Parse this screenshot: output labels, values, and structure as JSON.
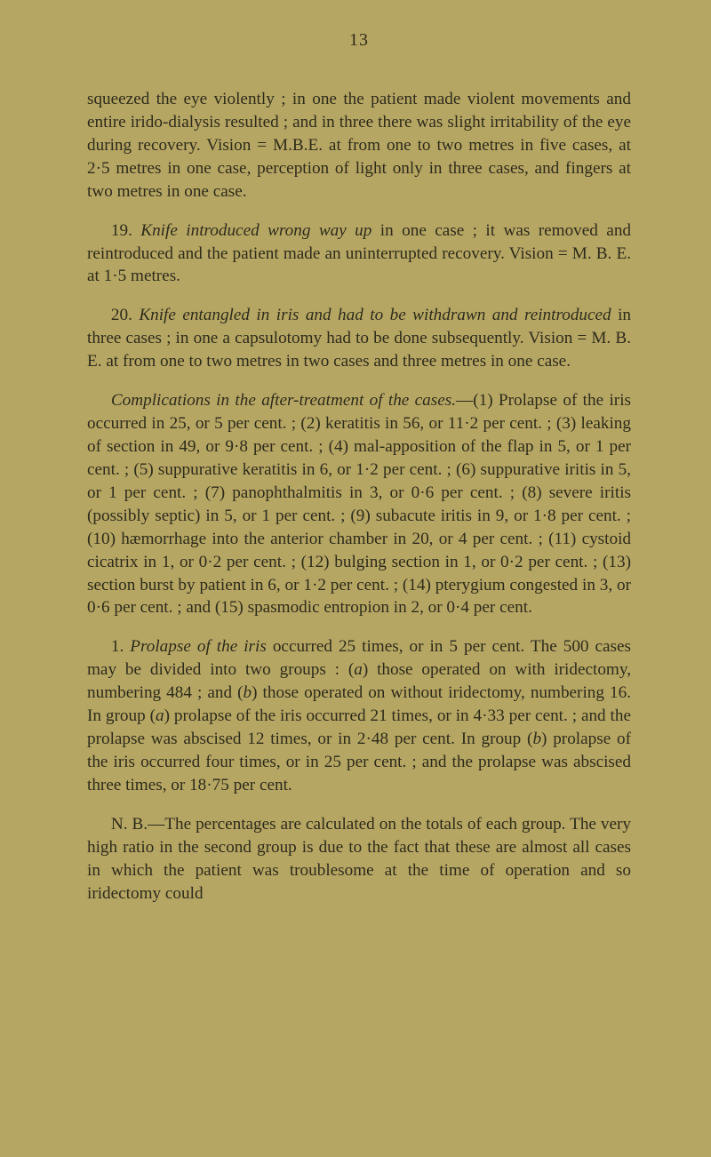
{
  "page_number": "13",
  "p1": "squeezed the eye violently ; in one the patient made violent movements and entire irido-dialysis resulted ; and in three there was slight irritability of the eye during recovery. Vision = M.B.E. at from one to two metres in five cases, at 2·5 metres in one case, perception of light only in three cases, and fingers at two metres in one case.",
  "p2_lead": "19. ",
  "p2_it": "Knife introduced wrong way up",
  "p2_rest": " in one case ; it was removed and reintroduced and the patient made an uninterrupted recovery. Vision = M. B. E. at 1·5 metres.",
  "p3_lead": "20. ",
  "p3_it": "Knife entangled in iris and had to be withdrawn and reintroduced",
  "p3_rest": " in three cases ; in one a capsulotomy had to be done subsequently. Vision = M. B. E. at from one to two metres in two cases and three metres in one case.",
  "p4_it": "Complications in the after-treatment of the cases.",
  "p4_rest": "—(1) Prolapse of the iris occurred in 25, or 5 per cent. ; (2) keratitis in 56, or 11·2 per cent. ; (3) leaking of section in 49, or 9·8 per cent. ; (4) mal-apposition of the flap in 5, or 1 per cent. ; (5) suppurative keratitis in 6, or 1·2 per cent. ; (6) suppurative iritis in 5, or 1 per cent. ; (7) panophthalmitis in 3, or 0·6 per cent. ; (8) severe iritis (possibly septic) in 5, or 1 per cent. ; (9) subacute iritis in 9, or 1·8 per cent. ; (10) hæmorrhage into the anterior chamber in 20, or 4 per cent. ; (11) cystoid cicatrix in 1, or 0·2 per cent. ; (12) bulging section in 1, or 0·2 per cent. ; (13) section burst by patient in 6, or 1·2 per cent. ; (14) pterygium congested in 3, or 0·6 per cent. ; and (15) spasmodic entropion in 2, or 0·4 per cent.",
  "p5_lead": "1. ",
  "p5_it": "Prolapse of the iris",
  "p5_rest_a": " occurred 25 times, or in 5 per cent. The 500 cases may be divided into two groups : (",
  "p5_it_a": "a",
  "p5_rest_b": ") those operated on with iridectomy, numbering 484 ; and (",
  "p5_it_b": "b",
  "p5_rest_c": ") those operated on without iridectomy, numbering 16. In group (",
  "p5_it_c": "a",
  "p5_rest_d": ") prolapse of the iris occurred 21 times, or in 4·33 per cent. ; and the prolapse was abscised 12 times, or in 2·48 per cent. In group (",
  "p5_it_d": "b",
  "p5_rest_e": ") prolapse of the iris occurred four times, or in 25 per cent. ; and the prolapse was abscised three times, or 18·75 per cent.",
  "p6": "N. B.—The percentages are calculated on the totals of each group. The very high ratio in the second group is due to the fact that these are almost all cases in which the patient was troublesome at the time of operation and so iridectomy could"
}
